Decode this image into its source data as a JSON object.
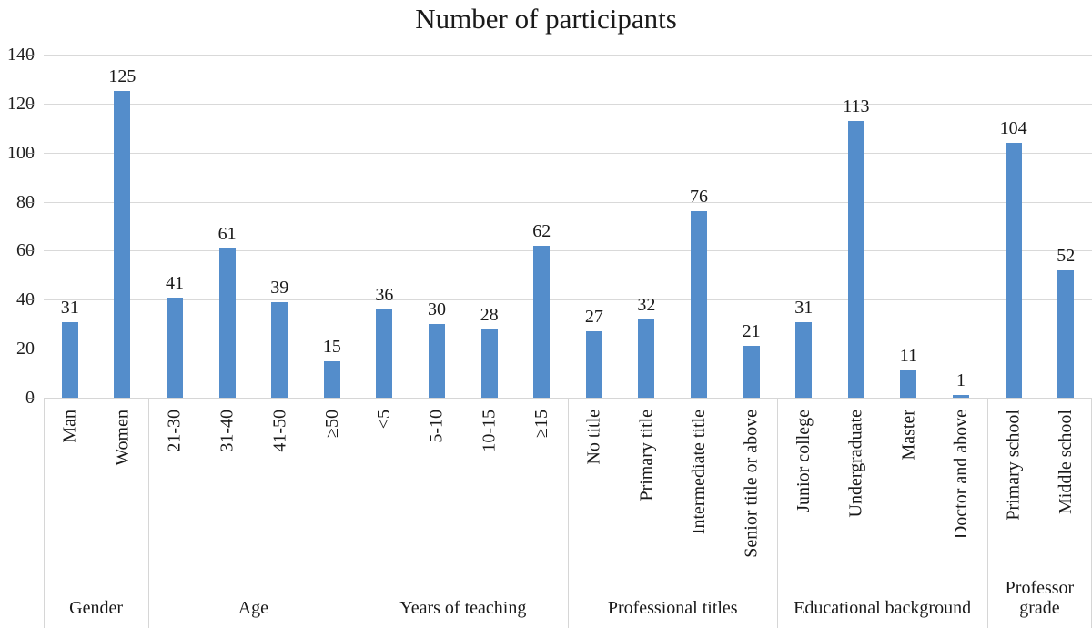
{
  "title": "Number of participants",
  "chart_data": {
    "type": "bar",
    "title": "Number of participants",
    "xlabel": "",
    "ylabel": "",
    "ylim": [
      0,
      140
    ],
    "yticks": [
      0,
      20,
      40,
      60,
      80,
      100,
      120,
      140
    ],
    "grid": true,
    "legend": "none",
    "bar_color": "#548DCB",
    "gridline_color": "#d9d9d9",
    "divider_color": "#d6d6d6",
    "text_color": "#1a1a1a",
    "groups": [
      {
        "label": "Gender",
        "categories": [
          "Man",
          "Women"
        ],
        "values": [
          31,
          125
        ]
      },
      {
        "label": "Age",
        "categories": [
          "21-30",
          "31-40",
          "41-50",
          "≥50"
        ],
        "values": [
          41,
          61,
          39,
          15
        ]
      },
      {
        "label": "Years of teaching",
        "categories": [
          "≤5",
          "5-10",
          "10-15",
          "≥15"
        ],
        "values": [
          36,
          30,
          28,
          62
        ]
      },
      {
        "label": "Professional titles",
        "categories": [
          "No title",
          "Primary title",
          "Intermediate title",
          "Senior title or above"
        ],
        "values": [
          27,
          32,
          76,
          21
        ]
      },
      {
        "label": "Educational background",
        "categories": [
          "Junior college",
          "Undergraduate",
          "Master",
          "Doctor and above"
        ],
        "values": [
          31,
          113,
          11,
          1
        ]
      },
      {
        "label": "Professor grade",
        "categories": [
          "Primary school",
          "Middle school"
        ],
        "values": [
          104,
          52
        ]
      }
    ]
  }
}
